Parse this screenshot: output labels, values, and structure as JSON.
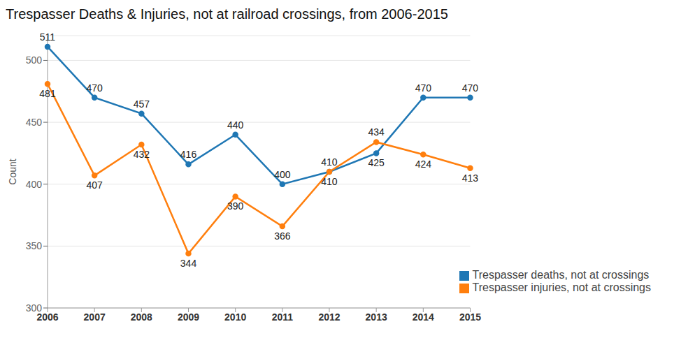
{
  "chart_data": {
    "type": "line",
    "title": "Trespasser Deaths & Injuries, not at railroad crossings, from 2006-2015",
    "y_label": "Count",
    "categories": [
      "2006",
      "2007",
      "2008",
      "2009",
      "2010",
      "2011",
      "2012",
      "2013",
      "2014",
      "2015"
    ],
    "series": [
      {
        "name": "Trespasser deaths, not at crossings",
        "color": "#1f77b4",
        "values": [
          511,
          470,
          457,
          416,
          440,
          400,
          410,
          425,
          470,
          470
        ]
      },
      {
        "name": "Trespasser injuries, not at crossings",
        "color": "#ff7f0e",
        "values": [
          481,
          407,
          432,
          344,
          390,
          366,
          410,
          434,
          424,
          413
        ]
      }
    ],
    "ylim": [
      300,
      520
    ],
    "yticks": [
      300,
      350,
      400,
      450,
      500
    ],
    "grid": true,
    "legend": "lower right",
    "data_labels": true,
    "marker": "circle",
    "line_style": "solid"
  }
}
